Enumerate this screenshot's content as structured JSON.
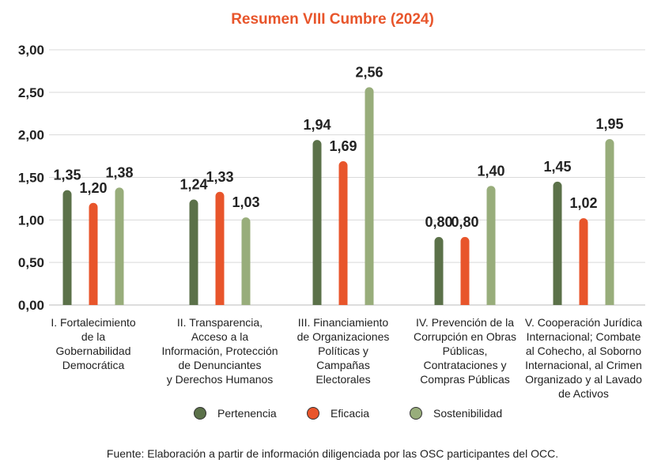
{
  "chart_data": {
    "type": "bar",
    "title": "Resumen VIII Cumbre (2024)",
    "categories": [
      "I. Fortalecimiento de la Gobernabilidad Democrática",
      "II. Transparencia, Acceso a la Información, Protección de Denunciantes y Derechos Humanos",
      "III. Financiamiento de Organizaciones Políticas y Campañas Electorales",
      "IV. Prevención de la Corrupción en Obras Públicas, Contrataciones y Compras Públicas",
      "V. Cooperación Jurídica Internacional; Combate al Cohecho, al Soborno Internacional, al Crimen Organizado y al Lavado de Activos"
    ],
    "category_lines": [
      [
        "I. Fortalecimiento",
        "de la",
        "Gobernabilidad",
        "Democrática"
      ],
      [
        "II. Transparencia,",
        "Acceso a la",
        "Información, Protección",
        "de Denunciantes",
        "y Derechos Humanos"
      ],
      [
        "III. Financiamiento",
        "de Organizaciones",
        "Políticas y",
        "Campañas",
        "Electorales"
      ],
      [
        "IV. Prevención de la",
        "Corrupción en Obras",
        "Públicas,",
        "Contrataciones y",
        "Compras Públicas"
      ],
      [
        "V. Cooperación Jurídica",
        "Internacional; Combate",
        "al Cohecho, al Soborno",
        "Internacional, al Crimen",
        "Organizado y al Lavado",
        "de Activos"
      ]
    ],
    "series": [
      {
        "name": "Pertenencia",
        "color": "#5b7149",
        "values": [
          1.35,
          1.24,
          1.94,
          0.8,
          1.45
        ],
        "labels": [
          "1,35",
          "1,24",
          "1,94",
          "0,80",
          "1,45"
        ]
      },
      {
        "name": "Eficacia",
        "color": "#e8552b",
        "values": [
          1.2,
          1.33,
          1.69,
          0.8,
          1.02
        ],
        "labels": [
          "1,20",
          "1,33",
          "1,69",
          "0,80",
          "1,02"
        ]
      },
      {
        "name": "Sostenibilidad",
        "color": "#98ad7b",
        "values": [
          1.38,
          1.03,
          2.56,
          1.4,
          1.95
        ],
        "labels": [
          "1,38",
          "1,03",
          "2,56",
          "1,40",
          "1,95"
        ]
      }
    ],
    "yticks": [
      0,
      0.5,
      1.0,
      1.5,
      2.0,
      2.5,
      3.0
    ],
    "ytick_labels": [
      "0,00",
      "0,50",
      "1,00",
      "1,50",
      "2,00",
      "2,50",
      "3,00"
    ],
    "ylim": [
      0,
      3.0
    ],
    "grid": true,
    "legend_position": "bottom",
    "xlabel": "",
    "ylabel": ""
  },
  "source_note": "Fuente: Elaboración a partir de información diligenciada por las OSC participantes del OCC."
}
